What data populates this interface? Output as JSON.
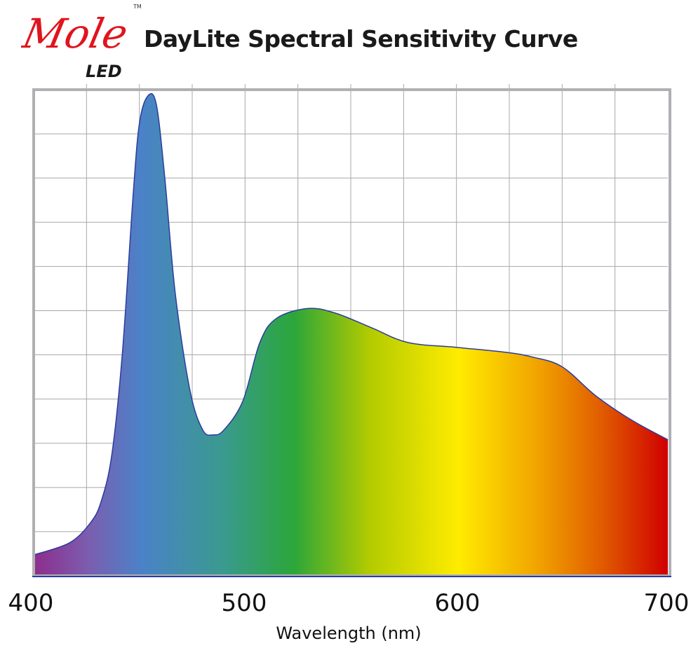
{
  "logo": {
    "brand": "Mole",
    "sub": "LED",
    "tm": "TM"
  },
  "colors": {
    "logo_red": "#e0141e",
    "curve_line": "#2b3c9c",
    "frame": "#b0b0b4",
    "grid": "#a8a8a8"
  },
  "chart_data": {
    "type": "area",
    "title": "DayLite Spectral Sensitivity Curve",
    "xlabel": "Wavelength (nm)",
    "ylabel": "",
    "xlim": [
      400,
      700
    ],
    "ylim": [
      0,
      1
    ],
    "grid": true,
    "fill": "visible-spectrum gradient",
    "x_ticks": [
      "400",
      "500",
      "600",
      "700"
    ],
    "x": [
      400,
      417,
      427,
      432,
      437,
      442,
      447,
      450,
      454,
      458,
      462,
      467,
      474,
      480,
      485,
      490,
      499,
      507,
      515,
      530,
      543,
      560,
      577,
      600,
      623,
      636,
      650,
      666,
      683,
      700
    ],
    "y": [
      0.043,
      0.068,
      0.11,
      0.154,
      0.25,
      0.46,
      0.78,
      0.93,
      0.987,
      0.97,
      0.82,
      0.58,
      0.38,
      0.3,
      0.29,
      0.3,
      0.36,
      0.48,
      0.53,
      0.55,
      0.54,
      0.51,
      0.48,
      0.47,
      0.46,
      0.45,
      0.43,
      0.37,
      0.32,
      0.28
    ]
  }
}
